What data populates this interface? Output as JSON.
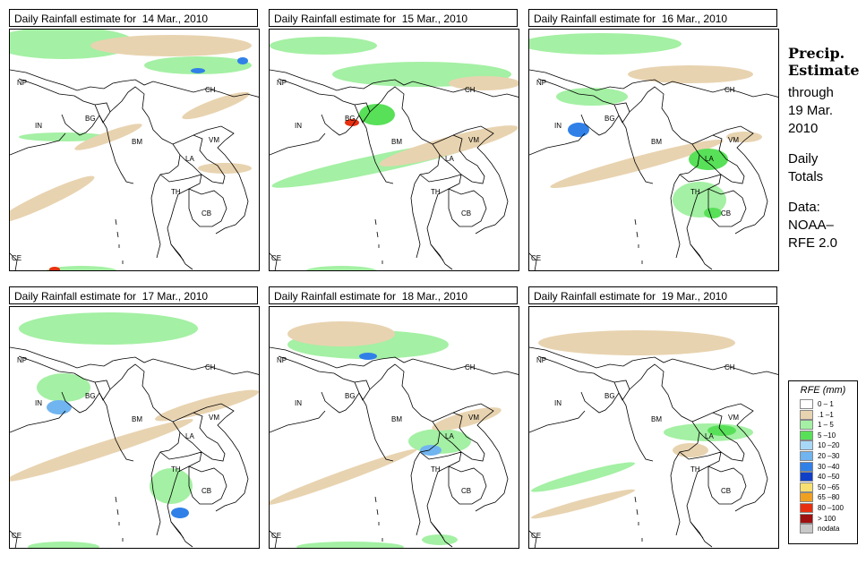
{
  "panels": [
    {
      "title": "Daily Rainfall estimate for  14 Mar., 2010"
    },
    {
      "title": "Daily Rainfall estimate for  15 Mar., 2010"
    },
    {
      "title": "Daily Rainfall estimate for  16 Mar., 2010"
    },
    {
      "title": "Daily Rainfall estimate for  17 Mar., 2010"
    },
    {
      "title": "Daily Rainfall estimate for  18 Mar., 2010"
    },
    {
      "title": "Daily Rainfall estimate for  19 Mar., 2010"
    }
  ],
  "country_labels": {
    "np": "NP",
    "ch": "CH",
    "in": "IN",
    "bg": "BG",
    "bm": "BM",
    "vm": "VM",
    "la": "LA",
    "th": "TH",
    "cb": "CB",
    "ce": "CE"
  },
  "side": {
    "title_line1": "Precip.",
    "title_line2": "Estimate",
    "through": "through",
    "date1": "19 Mar.",
    "date2": "2010",
    "daily": "Daily",
    "totals": "Totals",
    "data_label": "Data:",
    "source1": "NOAA–",
    "source2": "RFE 2.0"
  },
  "legend": {
    "title": "RFE (mm)",
    "items": [
      {
        "label": "0 – 1",
        "color": "#ffffff"
      },
      {
        "label": ".1 –1",
        "color": "#e8d3b0"
      },
      {
        "label": "1 – 5",
        "color": "#a4f0a4"
      },
      {
        "label": "5 –10",
        "color": "#58e058"
      },
      {
        "label": "10 –20",
        "color": "#a8d8f8"
      },
      {
        "label": "20 –30",
        "color": "#70b4f0"
      },
      {
        "label": "30 –40",
        "color": "#3080e8"
      },
      {
        "label": "40 –50",
        "color": "#1040c8"
      },
      {
        "label": "50 –65",
        "color": "#f8e070"
      },
      {
        "label": "65 –80",
        "color": "#f0a020"
      },
      {
        "label": "80 –100",
        "color": "#e83010"
      },
      {
        "label": "> 100",
        "color": "#a01010"
      },
      {
        "label": "nodata",
        "color": "#c8c8c8"
      }
    ]
  },
  "colors": {
    "tan": "#e8d3b0",
    "lightgreen": "#a4f0a4",
    "green": "#58e058",
    "blue": "#70b4f0",
    "darkblue": "#1040c8",
    "red": "#e83010"
  }
}
